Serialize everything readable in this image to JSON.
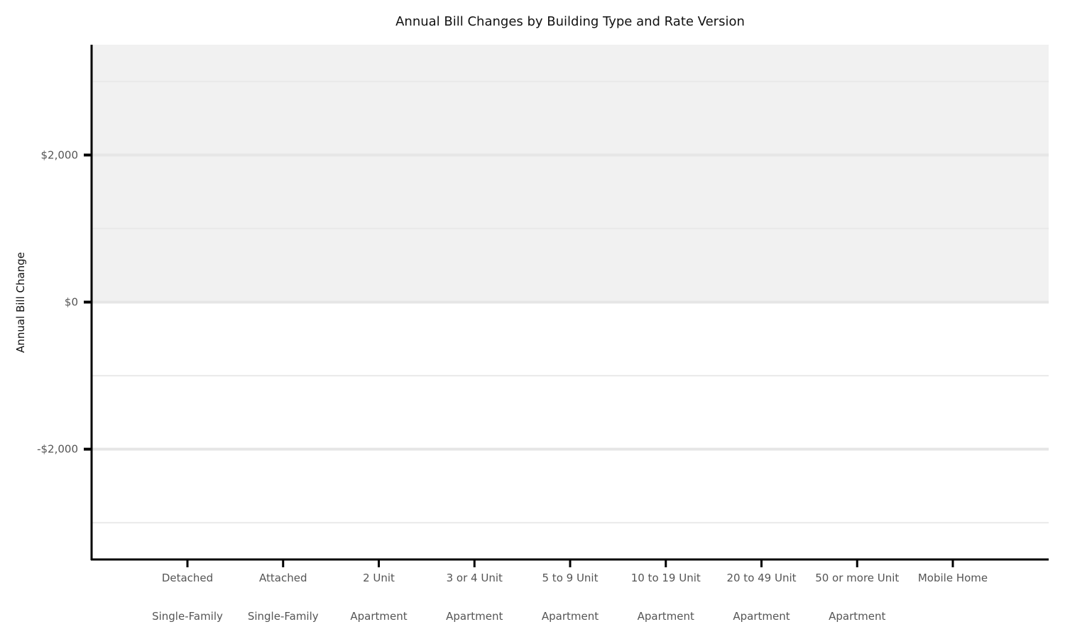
{
  "chart_data": {
    "type": "bar",
    "title": "Annual Bill Changes by Building Type and Rate Version",
    "xlabel": "",
    "ylabel": "Annual Bill Change",
    "ylim": [
      -3500,
      3500
    ],
    "yticks": [
      -2000,
      0,
      2000
    ],
    "ytick_labels": [
      "-$2,000",
      "$0",
      "$2,000"
    ],
    "minor_gridlines": [
      -3000,
      -1000,
      1000,
      3000
    ],
    "shaded_region": {
      "from": 0,
      "to": 3500,
      "color": "#f1f1f1"
    },
    "grid": true,
    "categories": [
      {
        "line1": "Detached",
        "line2": "Single-Family"
      },
      {
        "line1": "Attached",
        "line2": "Single-Family"
      },
      {
        "line1": "2 Unit",
        "line2": "Apartment"
      },
      {
        "line1": "3 or 4 Unit",
        "line2": "Apartment"
      },
      {
        "line1": "5 to 9 Unit",
        "line2": "Apartment"
      },
      {
        "line1": "10 to 19 Unit",
        "line2": "Apartment"
      },
      {
        "line1": "20 to 49 Unit",
        "line2": "Apartment"
      },
      {
        "line1": "50 or more Unit",
        "line2": "Apartment"
      },
      {
        "line1": "Mobile Home",
        "line2": ""
      }
    ],
    "series": []
  }
}
